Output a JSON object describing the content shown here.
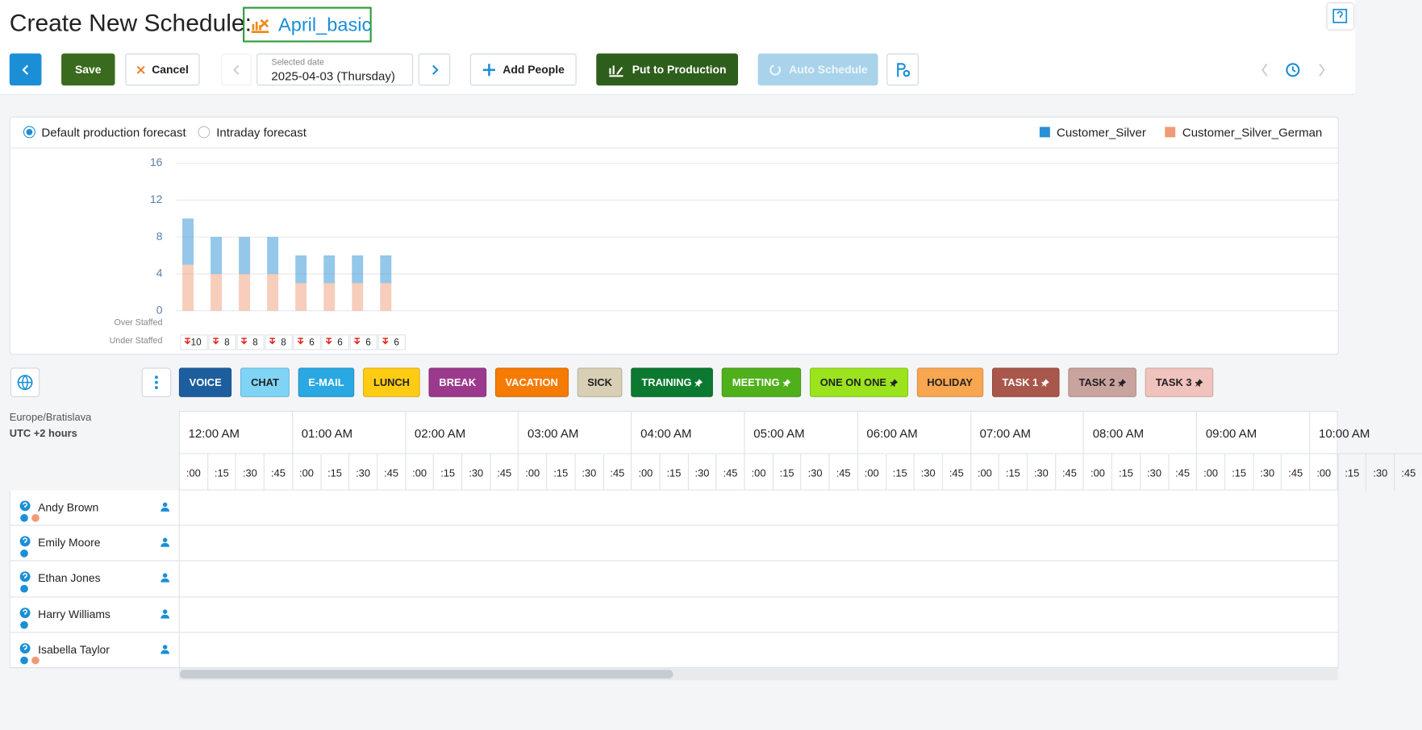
{
  "header": {
    "title": "Create New Schedule:",
    "schedule_name": "April_basic"
  },
  "toolbar": {
    "save": "Save",
    "cancel": "Cancel",
    "date_label": "Selected date",
    "date": "2025-04-03 (Thursday)",
    "add_people": "Add People",
    "put_to_production": "Put to Production",
    "auto_schedule": "Auto Schedule"
  },
  "forecast": {
    "options": [
      "Default production forecast",
      "Intraday forecast"
    ],
    "chart": {
      "type": "bar",
      "stacked": true,
      "ylim": [
        0,
        16
      ],
      "yticks": [
        0,
        4,
        8,
        12,
        16
      ],
      "grid": true,
      "series": [
        {
          "name": "Customer_Silver",
          "color": "#2a8fd6",
          "values": [
            5,
            4,
            4,
            4,
            3,
            3,
            3,
            3
          ]
        },
        {
          "name": "Customer_Silver_German",
          "color": "#ef9b78",
          "values": [
            5,
            4,
            4,
            4,
            3,
            3,
            3,
            3
          ]
        }
      ],
      "over_staffed_label": "Over Staffed",
      "under_staffed_label": "Under Staffed",
      "under_staffed": [
        10,
        8,
        8,
        8,
        6,
        6,
        6,
        6
      ]
    }
  },
  "activities": [
    {
      "label": "VOICE",
      "color": "#1d5e9e"
    },
    {
      "label": "CHAT",
      "color": "#7fd4f6"
    },
    {
      "label": "E-MAIL",
      "color": "#2aa8e2"
    },
    {
      "label": "LUNCH",
      "color": "#ffcc14"
    },
    {
      "label": "BREAK",
      "color": "#9b3a8d"
    },
    {
      "label": "VACATION",
      "color": "#f57b05"
    },
    {
      "label": "SICK",
      "color": "#d8cfb5"
    },
    {
      "label": "TRAINING",
      "color": "#0b7a30",
      "pinned": true
    },
    {
      "label": "MEETING",
      "color": "#4fb01b",
      "pinned": true
    },
    {
      "label": "ONE ON ONE",
      "color": "#9be41d",
      "pinned": true
    },
    {
      "label": "HOLIDAY",
      "color": "#f9a651"
    },
    {
      "label": "TASK 1",
      "color": "#a9574b",
      "pinned": true
    },
    {
      "label": "TASK 2",
      "color": "#c9a39e",
      "pinned": true
    },
    {
      "label": "TASK 3",
      "color": "#f0c3bc",
      "pinned": true
    }
  ],
  "timezone": {
    "zone": "Europe/Bratislava",
    "offset": "UTC +2 hours"
  },
  "timeline": {
    "hours": [
      "12:00 AM",
      "01:00 AM",
      "02:00 AM",
      "03:00 AM",
      "04:00 AM",
      "05:00 AM",
      "06:00 AM",
      "07:00 AM",
      "08:00 AM",
      "09:00 AM",
      "10:00 AM"
    ],
    "quarters": [
      ":00",
      ":15",
      ":30",
      ":45"
    ]
  },
  "people": [
    "Andy Brown",
    "Emily Moore",
    "Ethan Jones",
    "Harry Williams",
    "Isabella Taylor"
  ]
}
